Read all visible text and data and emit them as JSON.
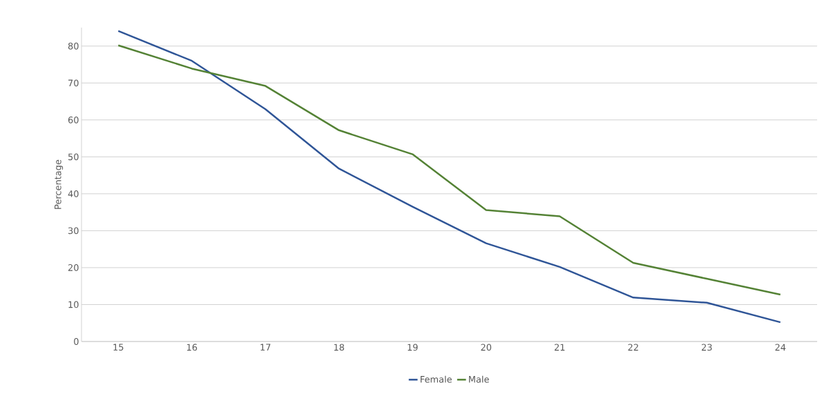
{
  "chart_data": {
    "type": "line",
    "ylabel": "Percentage",
    "categories": [
      "15",
      "16",
      "17",
      "18",
      "19",
      "20",
      "21",
      "22",
      "23",
      "24"
    ],
    "series": [
      {
        "name": "Female",
        "color": "#2f5597",
        "values": [
          84.1,
          76.0,
          62.9,
          46.8,
          36.5,
          26.6,
          20.2,
          11.9,
          10.5,
          5.2
        ]
      },
      {
        "name": "Male",
        "color": "#548235",
        "values": [
          80.2,
          73.9,
          69.2,
          57.2,
          50.7,
          35.6,
          33.9,
          21.3,
          17.0,
          12.7
        ]
      }
    ],
    "ylim": [
      0,
      85
    ],
    "yticks": [
      0,
      10,
      20,
      30,
      40,
      50,
      60,
      70,
      80
    ],
    "grid": "y",
    "legend": "bottom",
    "marker": "none",
    "line_style": "solid"
  }
}
